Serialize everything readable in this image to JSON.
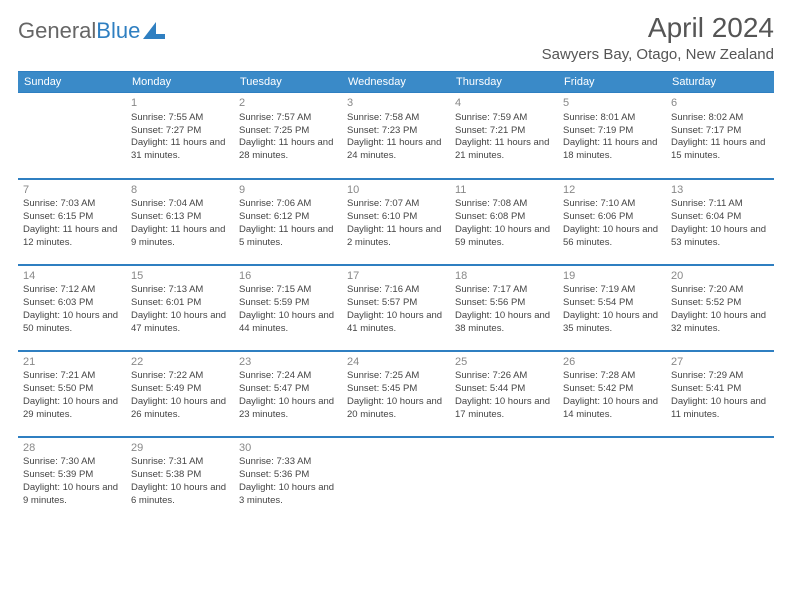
{
  "logo": {
    "word1": "General",
    "word2": "Blue"
  },
  "title": "April 2024",
  "location": "Sawyers Bay, Otago, New Zealand",
  "colors": {
    "header_bg": "#3a8ac8",
    "header_border": "#2f7fc1",
    "text": "#444444",
    "daynum": "#888888"
  },
  "weekdays": [
    "Sunday",
    "Monday",
    "Tuesday",
    "Wednesday",
    "Thursday",
    "Friday",
    "Saturday"
  ],
  "weeks": [
    [
      null,
      {
        "n": "1",
        "sr": "Sunrise: 7:55 AM",
        "ss": "Sunset: 7:27 PM",
        "dl": "Daylight: 11 hours and 31 minutes."
      },
      {
        "n": "2",
        "sr": "Sunrise: 7:57 AM",
        "ss": "Sunset: 7:25 PM",
        "dl": "Daylight: 11 hours and 28 minutes."
      },
      {
        "n": "3",
        "sr": "Sunrise: 7:58 AM",
        "ss": "Sunset: 7:23 PM",
        "dl": "Daylight: 11 hours and 24 minutes."
      },
      {
        "n": "4",
        "sr": "Sunrise: 7:59 AM",
        "ss": "Sunset: 7:21 PM",
        "dl": "Daylight: 11 hours and 21 minutes."
      },
      {
        "n": "5",
        "sr": "Sunrise: 8:01 AM",
        "ss": "Sunset: 7:19 PM",
        "dl": "Daylight: 11 hours and 18 minutes."
      },
      {
        "n": "6",
        "sr": "Sunrise: 8:02 AM",
        "ss": "Sunset: 7:17 PM",
        "dl": "Daylight: 11 hours and 15 minutes."
      }
    ],
    [
      {
        "n": "7",
        "sr": "Sunrise: 7:03 AM",
        "ss": "Sunset: 6:15 PM",
        "dl": "Daylight: 11 hours and 12 minutes."
      },
      {
        "n": "8",
        "sr": "Sunrise: 7:04 AM",
        "ss": "Sunset: 6:13 PM",
        "dl": "Daylight: 11 hours and 9 minutes."
      },
      {
        "n": "9",
        "sr": "Sunrise: 7:06 AM",
        "ss": "Sunset: 6:12 PM",
        "dl": "Daylight: 11 hours and 5 minutes."
      },
      {
        "n": "10",
        "sr": "Sunrise: 7:07 AM",
        "ss": "Sunset: 6:10 PM",
        "dl": "Daylight: 11 hours and 2 minutes."
      },
      {
        "n": "11",
        "sr": "Sunrise: 7:08 AM",
        "ss": "Sunset: 6:08 PM",
        "dl": "Daylight: 10 hours and 59 minutes."
      },
      {
        "n": "12",
        "sr": "Sunrise: 7:10 AM",
        "ss": "Sunset: 6:06 PM",
        "dl": "Daylight: 10 hours and 56 minutes."
      },
      {
        "n": "13",
        "sr": "Sunrise: 7:11 AM",
        "ss": "Sunset: 6:04 PM",
        "dl": "Daylight: 10 hours and 53 minutes."
      }
    ],
    [
      {
        "n": "14",
        "sr": "Sunrise: 7:12 AM",
        "ss": "Sunset: 6:03 PM",
        "dl": "Daylight: 10 hours and 50 minutes."
      },
      {
        "n": "15",
        "sr": "Sunrise: 7:13 AM",
        "ss": "Sunset: 6:01 PM",
        "dl": "Daylight: 10 hours and 47 minutes."
      },
      {
        "n": "16",
        "sr": "Sunrise: 7:15 AM",
        "ss": "Sunset: 5:59 PM",
        "dl": "Daylight: 10 hours and 44 minutes."
      },
      {
        "n": "17",
        "sr": "Sunrise: 7:16 AM",
        "ss": "Sunset: 5:57 PM",
        "dl": "Daylight: 10 hours and 41 minutes."
      },
      {
        "n": "18",
        "sr": "Sunrise: 7:17 AM",
        "ss": "Sunset: 5:56 PM",
        "dl": "Daylight: 10 hours and 38 minutes."
      },
      {
        "n": "19",
        "sr": "Sunrise: 7:19 AM",
        "ss": "Sunset: 5:54 PM",
        "dl": "Daylight: 10 hours and 35 minutes."
      },
      {
        "n": "20",
        "sr": "Sunrise: 7:20 AM",
        "ss": "Sunset: 5:52 PM",
        "dl": "Daylight: 10 hours and 32 minutes."
      }
    ],
    [
      {
        "n": "21",
        "sr": "Sunrise: 7:21 AM",
        "ss": "Sunset: 5:50 PM",
        "dl": "Daylight: 10 hours and 29 minutes."
      },
      {
        "n": "22",
        "sr": "Sunrise: 7:22 AM",
        "ss": "Sunset: 5:49 PM",
        "dl": "Daylight: 10 hours and 26 minutes."
      },
      {
        "n": "23",
        "sr": "Sunrise: 7:24 AM",
        "ss": "Sunset: 5:47 PM",
        "dl": "Daylight: 10 hours and 23 minutes."
      },
      {
        "n": "24",
        "sr": "Sunrise: 7:25 AM",
        "ss": "Sunset: 5:45 PM",
        "dl": "Daylight: 10 hours and 20 minutes."
      },
      {
        "n": "25",
        "sr": "Sunrise: 7:26 AM",
        "ss": "Sunset: 5:44 PM",
        "dl": "Daylight: 10 hours and 17 minutes."
      },
      {
        "n": "26",
        "sr": "Sunrise: 7:28 AM",
        "ss": "Sunset: 5:42 PM",
        "dl": "Daylight: 10 hours and 14 minutes."
      },
      {
        "n": "27",
        "sr": "Sunrise: 7:29 AM",
        "ss": "Sunset: 5:41 PM",
        "dl": "Daylight: 10 hours and 11 minutes."
      }
    ],
    [
      {
        "n": "28",
        "sr": "Sunrise: 7:30 AM",
        "ss": "Sunset: 5:39 PM",
        "dl": "Daylight: 10 hours and 9 minutes."
      },
      {
        "n": "29",
        "sr": "Sunrise: 7:31 AM",
        "ss": "Sunset: 5:38 PM",
        "dl": "Daylight: 10 hours and 6 minutes."
      },
      {
        "n": "30",
        "sr": "Sunrise: 7:33 AM",
        "ss": "Sunset: 5:36 PM",
        "dl": "Daylight: 10 hours and 3 minutes."
      },
      null,
      null,
      null,
      null
    ]
  ]
}
